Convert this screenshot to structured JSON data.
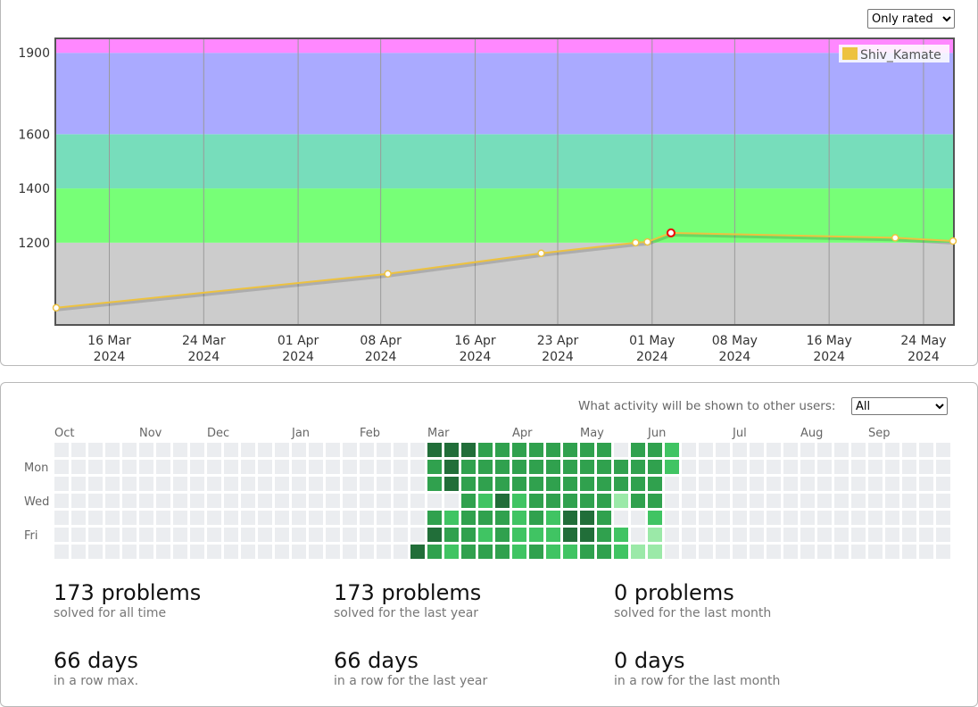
{
  "rating_filter": {
    "selected": "Only rated"
  },
  "chart_data": {
    "type": "line",
    "title": "",
    "legend": "Shiv_Kamate",
    "ylim": [
      900,
      1950
    ],
    "yticks": [
      1200,
      1400,
      1600,
      1900
    ],
    "bands": [
      {
        "from": 900,
        "to": 1200,
        "color": "#cccccc"
      },
      {
        "from": 1200,
        "to": 1400,
        "color": "#77ff77"
      },
      {
        "from": 1400,
        "to": 1600,
        "color": "#77ddbb"
      },
      {
        "from": 1600,
        "to": 1900,
        "color": "#aaaaff"
      },
      {
        "from": 1900,
        "to": 2100,
        "color": "#ff88ff"
      }
    ],
    "xticks": [
      {
        "line1": "16 Mar",
        "line2": "2024",
        "day": 16
      },
      {
        "line1": "24 Mar",
        "line2": "2024",
        "day": 24
      },
      {
        "line1": "01 Apr",
        "line2": "2024",
        "day": 32
      },
      {
        "line1": "08 Apr",
        "line2": "2024",
        "day": 39
      },
      {
        "line1": "16 Apr",
        "line2": "2024",
        "day": 47
      },
      {
        "line1": "23 Apr",
        "line2": "2024",
        "day": 54
      },
      {
        "line1": "01 May",
        "line2": "2024",
        "day": 62
      },
      {
        "line1": "08 May",
        "line2": "2024",
        "day": 69
      },
      {
        "line1": "16 May",
        "line2": "2024",
        "day": 77
      },
      {
        "line1": "24 May",
        "line2": "2024",
        "day": 85
      }
    ],
    "xrange": [
      11.5,
      87.5
    ],
    "series": [
      {
        "name": "Shiv_Kamate",
        "color": "#edc240",
        "points": [
          {
            "day": 11.5,
            "rating": 960
          },
          {
            "day": 39.6,
            "rating": 1085
          },
          {
            "day": 52.6,
            "rating": 1161
          },
          {
            "day": 60.6,
            "rating": 1200
          },
          {
            "day": 61.6,
            "rating": 1203
          },
          {
            "day": 63.6,
            "rating": 1236,
            "highlight": true
          },
          {
            "day": 82.6,
            "rating": 1218
          },
          {
            "day": 87.5,
            "rating": 1206
          }
        ]
      }
    ]
  },
  "activity": {
    "visibility_label": "What activity will be shown to other users:",
    "visibility_selected": "All",
    "months": [
      {
        "label": "Oct",
        "col": 0
      },
      {
        "label": "Nov",
        "col": 5
      },
      {
        "label": "Dec",
        "col": 9
      },
      {
        "label": "Jan",
        "col": 14
      },
      {
        "label": "Feb",
        "col": 18
      },
      {
        "label": "Mar",
        "col": 22
      },
      {
        "label": "Apr",
        "col": 27
      },
      {
        "label": "May",
        "col": 31
      },
      {
        "label": "Jun",
        "col": 35
      },
      {
        "label": "Jul",
        "col": 40
      },
      {
        "label": "Aug",
        "col": 44
      },
      {
        "label": "Sep",
        "col": 48
      }
    ],
    "weekday_labels": [
      {
        "label": "Mon",
        "row": 1
      },
      {
        "label": "Wed",
        "row": 3
      },
      {
        "label": "Fri",
        "row": 5
      }
    ],
    "levels_by_week": [
      "0000000",
      "0000000",
      "0000000",
      "0000000",
      "0000000",
      "0000000",
      "0000000",
      "0000000",
      "0000000",
      "0000000",
      "0000000",
      "0000000",
      "0000000",
      "0000000",
      "0000000",
      "0000000",
      "0000000",
      "0000000",
      "0000000",
      "0000000",
      "0000000",
      "0000004",
      "4330343",
      "4440232",
      "4333333",
      "3332323",
      "3334333",
      "3332222",
      "3333323",
      "3333222",
      "3333442",
      "3333443",
      "3333333",
      "0331022",
      "3333001",
      "3333211",
      "2200000",
      "0000000",
      "0000000",
      "0000000",
      "0000000",
      "0000000",
      "0000000",
      "0000000",
      "0000000",
      "0000000",
      "0000000",
      "0000000",
      "0000000",
      "0000000",
      "0000000",
      "0000000",
      "0000000"
    ],
    "level_colors": [
      "#ebedf0",
      "#9be9a8",
      "#40c463",
      "#30a14e",
      "#216e39"
    ]
  },
  "stats": [
    {
      "value": "173 problems",
      "caption": "solved for all time"
    },
    {
      "value": "173 problems",
      "caption": "solved for the last year"
    },
    {
      "value": "0 problems",
      "caption": "solved for the last month"
    },
    {
      "value": "66 days",
      "caption": "in a row max."
    },
    {
      "value": "66 days",
      "caption": "in a row for the last year"
    },
    {
      "value": "0 days",
      "caption": "in a row for the last month"
    }
  ]
}
